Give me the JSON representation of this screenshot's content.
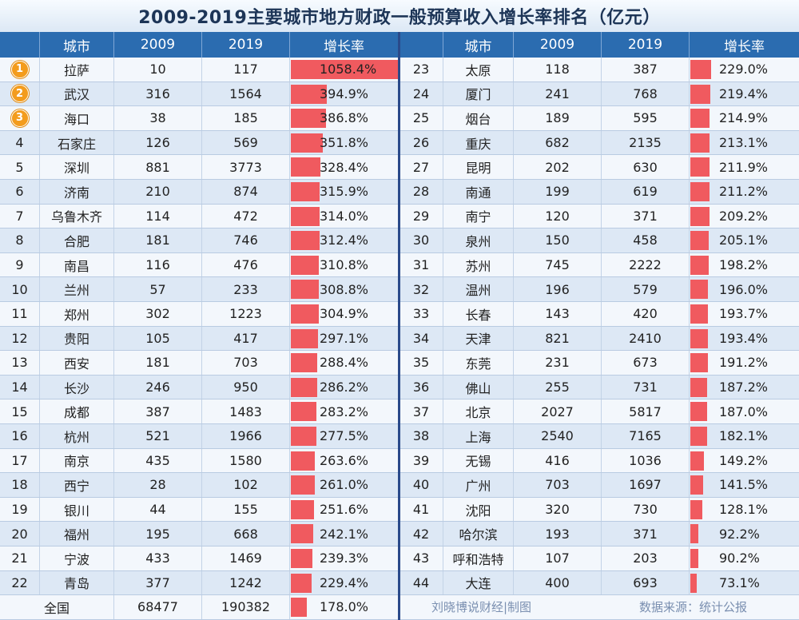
{
  "chart_data": {
    "type": "table",
    "title": "2009-2019主要城市地方财政一般预算收入增长率排名（亿元）",
    "columns": [
      "城市",
      "2009",
      "2019",
      "增长率"
    ],
    "rows": [
      {
        "rank": "1",
        "city": "拉萨",
        "v2009": "10",
        "v2019": "117",
        "rate": 1058.4,
        "rate_text": "1058.4%"
      },
      {
        "rank": "2",
        "city": "武汉",
        "v2009": "316",
        "v2019": "1564",
        "rate": 394.9,
        "rate_text": "394.9%"
      },
      {
        "rank": "3",
        "city": "海口",
        "v2009": "38",
        "v2019": "185",
        "rate": 386.8,
        "rate_text": "386.8%"
      },
      {
        "rank": "4",
        "city": "石家庄",
        "v2009": "126",
        "v2019": "569",
        "rate": 351.8,
        "rate_text": "351.8%"
      },
      {
        "rank": "5",
        "city": "深圳",
        "v2009": "881",
        "v2019": "3773",
        "rate": 328.4,
        "rate_text": "328.4%"
      },
      {
        "rank": "6",
        "city": "济南",
        "v2009": "210",
        "v2019": "874",
        "rate": 315.9,
        "rate_text": "315.9%"
      },
      {
        "rank": "7",
        "city": "乌鲁木齐",
        "v2009": "114",
        "v2019": "472",
        "rate": 314.0,
        "rate_text": "314.0%"
      },
      {
        "rank": "8",
        "city": "合肥",
        "v2009": "181",
        "v2019": "746",
        "rate": 312.4,
        "rate_text": "312.4%"
      },
      {
        "rank": "9",
        "city": "南昌",
        "v2009": "116",
        "v2019": "476",
        "rate": 310.8,
        "rate_text": "310.8%"
      },
      {
        "rank": "10",
        "city": "兰州",
        "v2009": "57",
        "v2019": "233",
        "rate": 308.8,
        "rate_text": "308.8%"
      },
      {
        "rank": "11",
        "city": "郑州",
        "v2009": "302",
        "v2019": "1223",
        "rate": 304.9,
        "rate_text": "304.9%"
      },
      {
        "rank": "12",
        "city": "贵阳",
        "v2009": "105",
        "v2019": "417",
        "rate": 297.1,
        "rate_text": "297.1%"
      },
      {
        "rank": "13",
        "city": "西安",
        "v2009": "181",
        "v2019": "703",
        "rate": 288.4,
        "rate_text": "288.4%"
      },
      {
        "rank": "14",
        "city": "长沙",
        "v2009": "246",
        "v2019": "950",
        "rate": 286.2,
        "rate_text": "286.2%"
      },
      {
        "rank": "15",
        "city": "成都",
        "v2009": "387",
        "v2019": "1483",
        "rate": 283.2,
        "rate_text": "283.2%"
      },
      {
        "rank": "16",
        "city": "杭州",
        "v2009": "521",
        "v2019": "1966",
        "rate": 277.5,
        "rate_text": "277.5%"
      },
      {
        "rank": "17",
        "city": "南京",
        "v2009": "435",
        "v2019": "1580",
        "rate": 263.6,
        "rate_text": "263.6%"
      },
      {
        "rank": "18",
        "city": "西宁",
        "v2009": "28",
        "v2019": "102",
        "rate": 261.0,
        "rate_text": "261.0%"
      },
      {
        "rank": "19",
        "city": "银川",
        "v2009": "44",
        "v2019": "155",
        "rate": 251.6,
        "rate_text": "251.6%"
      },
      {
        "rank": "20",
        "city": "福州",
        "v2009": "195",
        "v2019": "668",
        "rate": 242.1,
        "rate_text": "242.1%"
      },
      {
        "rank": "21",
        "city": "宁波",
        "v2009": "433",
        "v2019": "1469",
        "rate": 239.3,
        "rate_text": "239.3%"
      },
      {
        "rank": "22",
        "city": "青岛",
        "v2009": "377",
        "v2019": "1242",
        "rate": 229.4,
        "rate_text": "229.4%"
      },
      {
        "rank": "23",
        "city": "太原",
        "v2009": "118",
        "v2019": "387",
        "rate": 229.0,
        "rate_text": "229.0%"
      },
      {
        "rank": "24",
        "city": "厦门",
        "v2009": "241",
        "v2019": "768",
        "rate": 219.4,
        "rate_text": "219.4%"
      },
      {
        "rank": "25",
        "city": "烟台",
        "v2009": "189",
        "v2019": "595",
        "rate": 214.9,
        "rate_text": "214.9%"
      },
      {
        "rank": "26",
        "city": "重庆",
        "v2009": "682",
        "v2019": "2135",
        "rate": 213.1,
        "rate_text": "213.1%"
      },
      {
        "rank": "27",
        "city": "昆明",
        "v2009": "202",
        "v2019": "630",
        "rate": 211.9,
        "rate_text": "211.9%"
      },
      {
        "rank": "28",
        "city": "南通",
        "v2009": "199",
        "v2019": "619",
        "rate": 211.2,
        "rate_text": "211.2%"
      },
      {
        "rank": "29",
        "city": "南宁",
        "v2009": "120",
        "v2019": "371",
        "rate": 209.2,
        "rate_text": "209.2%"
      },
      {
        "rank": "30",
        "city": "泉州",
        "v2009": "150",
        "v2019": "458",
        "rate": 205.1,
        "rate_text": "205.1%"
      },
      {
        "rank": "31",
        "city": "苏州",
        "v2009": "745",
        "v2019": "2222",
        "rate": 198.2,
        "rate_text": "198.2%"
      },
      {
        "rank": "32",
        "city": "温州",
        "v2009": "196",
        "v2019": "579",
        "rate": 196.0,
        "rate_text": "196.0%"
      },
      {
        "rank": "33",
        "city": "长春",
        "v2009": "143",
        "v2019": "420",
        "rate": 193.7,
        "rate_text": "193.7%"
      },
      {
        "rank": "34",
        "city": "天津",
        "v2009": "821",
        "v2019": "2410",
        "rate": 193.4,
        "rate_text": "193.4%"
      },
      {
        "rank": "35",
        "city": "东莞",
        "v2009": "231",
        "v2019": "673",
        "rate": 191.2,
        "rate_text": "191.2%"
      },
      {
        "rank": "36",
        "city": "佛山",
        "v2009": "255",
        "v2019": "731",
        "rate": 187.2,
        "rate_text": "187.2%"
      },
      {
        "rank": "37",
        "city": "北京",
        "v2009": "2027",
        "v2019": "5817",
        "rate": 187.0,
        "rate_text": "187.0%"
      },
      {
        "rank": "38",
        "city": "上海",
        "v2009": "2540",
        "v2019": "7165",
        "rate": 182.1,
        "rate_text": "182.1%"
      },
      {
        "rank": "39",
        "city": "无锡",
        "v2009": "416",
        "v2019": "1036",
        "rate": 149.2,
        "rate_text": "149.2%"
      },
      {
        "rank": "40",
        "city": "广州",
        "v2009": "703",
        "v2019": "1697",
        "rate": 141.5,
        "rate_text": "141.5%"
      },
      {
        "rank": "41",
        "city": "沈阳",
        "v2009": "320",
        "v2019": "730",
        "rate": 128.1,
        "rate_text": "128.1%"
      },
      {
        "rank": "42",
        "city": "哈尔滨",
        "v2009": "193",
        "v2019": "371",
        "rate": 92.2,
        "rate_text": "92.2%"
      },
      {
        "rank": "43",
        "city": "呼和浩特",
        "v2009": "107",
        "v2019": "203",
        "rate": 90.2,
        "rate_text": "90.2%"
      },
      {
        "rank": "44",
        "city": "大连",
        "v2009": "400",
        "v2019": "693",
        "rate": 73.1,
        "rate_text": "73.1%"
      }
    ],
    "total": {
      "city": "全国",
      "v2009": "68477",
      "v2019": "190382",
      "rate": 178.0,
      "rate_text": "178.0%"
    },
    "bar_color": "#f05a5f",
    "medal_color": "#f39c1d",
    "header_color": "#2b6cb0"
  },
  "footer": {
    "credit": "刘晓博说财经|制图",
    "source": "数据来源：统计公报"
  }
}
